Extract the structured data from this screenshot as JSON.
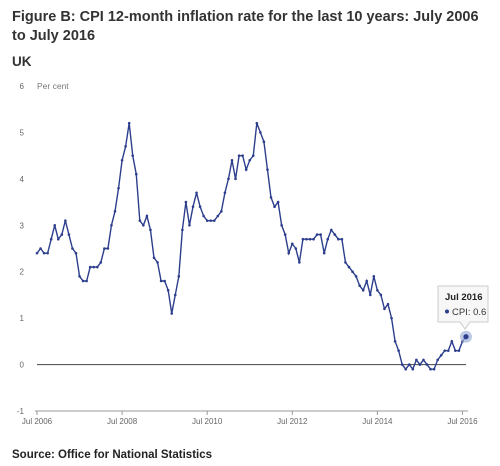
{
  "figure": {
    "title": "Figure B: CPI 12-month inflation rate for the last 10 years: July 2006 to July 2016",
    "region": "UK",
    "source": "Source: Office for National Statistics"
  },
  "colors": {
    "line": "#2c3e8c",
    "marker": "#2c3e8c",
    "axis": "#333333",
    "zero_line": "#444444",
    "tooltip_bg": "#f7f7f7",
    "tooltip_border": "#cccccc",
    "highlight": "#9fb4d9"
  },
  "tooltip": {
    "title": "Jul 2016",
    "label": "CPI: 0.6"
  },
  "chart_data": {
    "type": "line",
    "title": "Figure B: CPI 12-month inflation rate for the last 10 years: July 2006 to July 2016",
    "ylabel": "Per cent",
    "ylim": [
      -1,
      6
    ],
    "yticks": [
      "-1",
      "0",
      "1",
      "2",
      "3",
      "4",
      "5",
      "6"
    ],
    "xticks": [
      "Jul 2006",
      "Jul 2008",
      "Jul 2010",
      "Jul 2012",
      "Jul 2014",
      "Jul 2016"
    ],
    "x_start": "Jul 2006",
    "x_end": "Jul 2016",
    "grid": false,
    "legend": "none",
    "series": [
      {
        "name": "CPI",
        "values": [
          2.4,
          2.5,
          2.4,
          2.4,
          2.7,
          3.0,
          2.7,
          2.8,
          3.1,
          2.8,
          2.5,
          2.4,
          1.9,
          1.8,
          1.8,
          2.1,
          2.1,
          2.1,
          2.2,
          2.5,
          2.5,
          3.0,
          3.3,
          3.8,
          4.4,
          4.7,
          5.2,
          4.5,
          4.1,
          3.1,
          3.0,
          3.2,
          2.9,
          2.3,
          2.2,
          1.8,
          1.8,
          1.6,
          1.1,
          1.5,
          1.9,
          2.9,
          3.5,
          3.0,
          3.4,
          3.7,
          3.4,
          3.2,
          3.1,
          3.1,
          3.1,
          3.2,
          3.3,
          3.7,
          4.0,
          4.4,
          4.0,
          4.5,
          4.5,
          4.2,
          4.4,
          4.5,
          5.2,
          5.0,
          4.8,
          4.2,
          3.6,
          3.4,
          3.5,
          3.0,
          2.8,
          2.4,
          2.6,
          2.5,
          2.2,
          2.7,
          2.7,
          2.7,
          2.7,
          2.8,
          2.8,
          2.4,
          2.7,
          2.9,
          2.8,
          2.7,
          2.7,
          2.2,
          2.1,
          2.0,
          1.9,
          1.7,
          1.6,
          1.8,
          1.5,
          1.9,
          1.6,
          1.5,
          1.2,
          1.3,
          1.0,
          0.5,
          0.3,
          0.0,
          -0.1,
          0.0,
          -0.1,
          0.1,
          0.0,
          0.1,
          0.0,
          -0.1,
          -0.1,
          0.1,
          0.2,
          0.3,
          0.3,
          0.5,
          0.3,
          0.3,
          0.5,
          0.6
        ]
      }
    ]
  }
}
